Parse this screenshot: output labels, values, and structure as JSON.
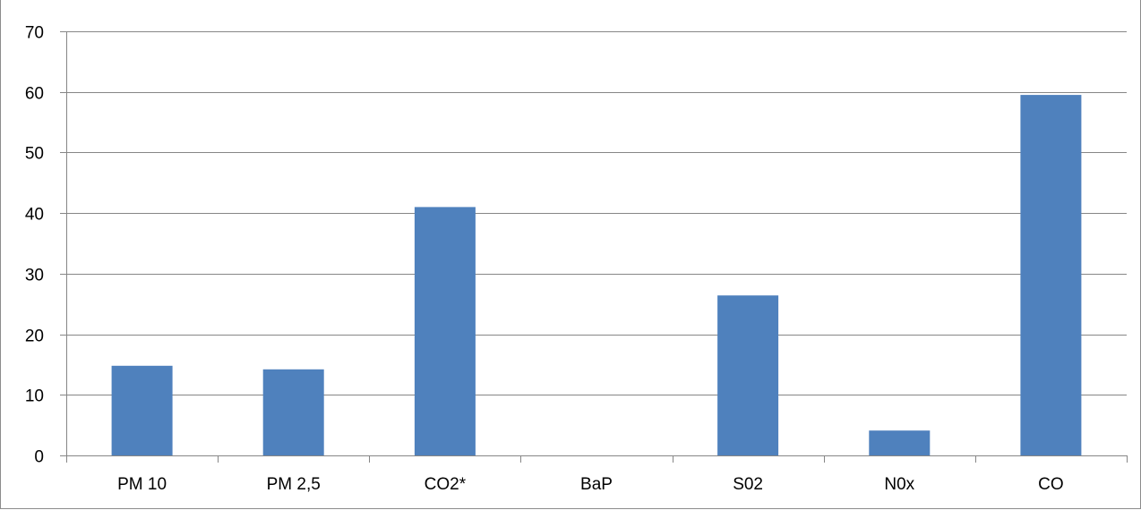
{
  "chart_data": {
    "type": "bar",
    "title": "",
    "xlabel": "",
    "ylabel": "",
    "categories": [
      "PM 10",
      "PM 2,5",
      "CO2*",
      "BaP",
      "S02",
      "N0x",
      "CO"
    ],
    "values": [
      14.8,
      14.2,
      41.0,
      0,
      26.4,
      4.1,
      59.5
    ],
    "ylim": [
      0,
      70
    ],
    "yticks": [
      0,
      10,
      20,
      30,
      40,
      50,
      60,
      70
    ],
    "grid": true,
    "legend": "none",
    "bar_color": "#4f81bd",
    "grid_color": "#868686"
  }
}
